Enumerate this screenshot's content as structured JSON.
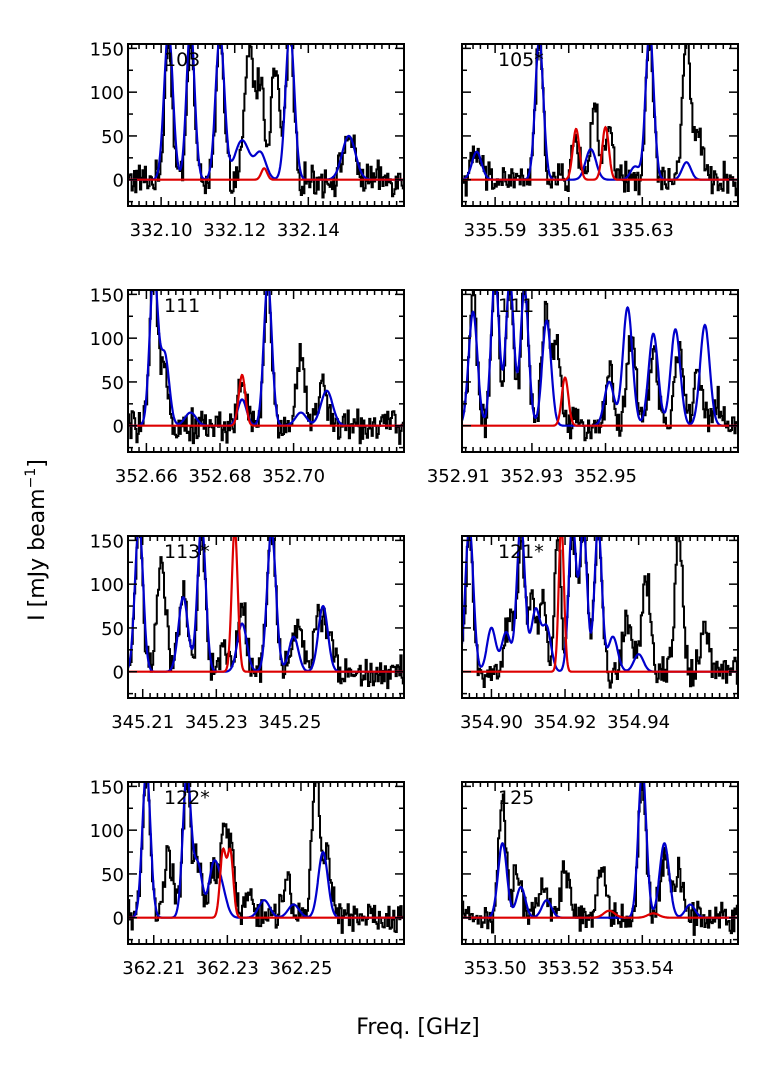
{
  "figure": {
    "xlabel": "Freq. [GHz]",
    "ylabel": "I [mJy beam",
    "ylabel_sup": "−1",
    "ylabel_close": "]"
  },
  "colors": {
    "observed": "#000000",
    "model": "#0000cc",
    "target": "#dd0000"
  },
  "chart_data": [
    {
      "type": "line",
      "label": "103",
      "xlim": [
        332.091,
        332.166
      ],
      "ylim": [
        -30,
        155
      ],
      "xticks": [
        "332.10",
        "332.12",
        "332.14"
      ],
      "yticks": [
        "0",
        "50",
        "100",
        "150"
      ],
      "peaks": {
        "obs": [
          [
            332.102,
            165,
            0.001
          ],
          [
            332.108,
            160,
            0.001
          ],
          [
            332.116,
            165,
            0.001
          ],
          [
            332.124,
            150,
            0.0012
          ],
          [
            332.127,
            110,
            0.001
          ],
          [
            332.131,
            125,
            0.0012
          ],
          [
            332.135,
            170,
            0.001
          ],
          [
            332.151,
            50,
            0.0015
          ]
        ],
        "model": [
          [
            332.102,
            170,
            0.0012
          ],
          [
            332.108,
            175,
            0.0011
          ],
          [
            332.116,
            165,
            0.0012
          ],
          [
            332.122,
            45,
            0.002
          ],
          [
            332.127,
            30,
            0.0015
          ],
          [
            332.135,
            170,
            0.0012
          ],
          [
            332.151,
            50,
            0.0018
          ]
        ],
        "red": [
          [
            332.128,
            13,
            0.0008
          ]
        ]
      }
    },
    {
      "type": "line",
      "label": "105*",
      "xlim": [
        335.581,
        335.656
      ],
      "ylim": [
        -30,
        155
      ],
      "xticks": [
        "335.59",
        "335.61",
        "335.63"
      ],
      "yticks": [],
      "peaks": {
        "obs": [
          [
            335.585,
            30,
            0.0012
          ],
          [
            335.602,
            160,
            0.001
          ],
          [
            335.612,
            45,
            0.001
          ],
          [
            335.617,
            90,
            0.001
          ],
          [
            335.621,
            55,
            0.001
          ],
          [
            335.632,
            160,
            0.001
          ],
          [
            335.642,
            170,
            0.001
          ],
          [
            335.645,
            50,
            0.0012
          ]
        ],
        "model": [
          [
            335.585,
            32,
            0.0013
          ],
          [
            335.602,
            160,
            0.0011
          ],
          [
            335.616,
            35,
            0.0014
          ],
          [
            335.628,
            15,
            0.0012
          ],
          [
            335.632,
            170,
            0.0011
          ],
          [
            335.642,
            20,
            0.0012
          ]
        ],
        "red": [
          [
            335.612,
            58,
            0.0009
          ],
          [
            335.62,
            60,
            0.0009
          ]
        ]
      }
    },
    {
      "type": "line",
      "label": "111",
      "xlim": [
        352.655,
        352.73
      ],
      "ylim": [
        -30,
        155
      ],
      "xticks": [
        "352.66",
        "352.68",
        "352.70"
      ],
      "yticks": [
        "0",
        "50",
        "100",
        "150"
      ],
      "peaks": {
        "obs": [
          [
            352.662,
            170,
            0.001
          ],
          [
            352.665,
            75,
            0.001
          ],
          [
            352.686,
            55,
            0.001
          ],
          [
            352.693,
            160,
            0.001
          ],
          [
            352.702,
            80,
            0.0012
          ],
          [
            352.708,
            45,
            0.0012
          ]
        ],
        "model": [
          [
            352.662,
            175,
            0.0011
          ],
          [
            352.665,
            80,
            0.0012
          ],
          [
            352.672,
            15,
            0.0015
          ],
          [
            352.686,
            30,
            0.0012
          ],
          [
            352.693,
            165,
            0.0011
          ],
          [
            352.702,
            15,
            0.0015
          ],
          [
            352.709,
            40,
            0.0016
          ]
        ],
        "red": [
          [
            352.686,
            58,
            0.0009
          ]
        ]
      }
    },
    {
      "type": "line",
      "label": "111",
      "xlim": [
        352.911,
        352.986
      ],
      "ylim": [
        -30,
        155
      ],
      "xticks": [
        "352.91",
        "352.93",
        "352.95"
      ],
      "yticks": [],
      "peaks": {
        "obs": [
          [
            352.914,
            160,
            0.001
          ],
          [
            352.92,
            170,
            0.001
          ],
          [
            352.924,
            160,
            0.001
          ],
          [
            352.928,
            160,
            0.001
          ],
          [
            352.934,
            130,
            0.0012
          ],
          [
            352.937,
            85,
            0.001
          ],
          [
            352.951,
            60,
            0.001
          ],
          [
            352.957,
            100,
            0.0012
          ],
          [
            352.963,
            80,
            0.0012
          ],
          [
            352.97,
            85,
            0.0012
          ],
          [
            352.975,
            55,
            0.0012
          ],
          [
            352.98,
            30,
            0.0012
          ]
        ],
        "model": [
          [
            352.914,
            130,
            0.0012
          ],
          [
            352.92,
            170,
            0.0011
          ],
          [
            352.924,
            165,
            0.0011
          ],
          [
            352.928,
            155,
            0.0011
          ],
          [
            352.934,
            120,
            0.0012
          ],
          [
            352.951,
            50,
            0.0013
          ],
          [
            352.956,
            135,
            0.0013
          ],
          [
            352.963,
            105,
            0.0013
          ],
          [
            352.969,
            110,
            0.0013
          ],
          [
            352.977,
            115,
            0.0013
          ]
        ],
        "red": [
          [
            352.939,
            55,
            0.0009
          ]
        ]
      }
    },
    {
      "type": "line",
      "label": "113*",
      "xlim": [
        345.206,
        345.281
      ],
      "ylim": [
        -30,
        155
      ],
      "xticks": [
        "345.21",
        "345.23",
        "345.25"
      ],
      "yticks": [
        "0",
        "50",
        "100",
        "150"
      ],
      "peaks": {
        "obs": [
          [
            345.209,
            170,
            0.001
          ],
          [
            345.215,
            120,
            0.0012
          ],
          [
            345.221,
            85,
            0.0012
          ],
          [
            345.226,
            165,
            0.001
          ],
          [
            345.232,
            30,
            0.001
          ],
          [
            345.237,
            75,
            0.0012
          ],
          [
            345.245,
            160,
            0.0012
          ],
          [
            345.252,
            60,
            0.0012
          ],
          [
            345.258,
            70,
            0.0012
          ],
          [
            345.261,
            40,
            0.0012
          ]
        ],
        "model": [
          [
            345.209,
            170,
            0.0011
          ],
          [
            345.221,
            85,
            0.0013
          ],
          [
            345.226,
            170,
            0.0011
          ],
          [
            345.237,
            55,
            0.0013
          ],
          [
            345.245,
            160,
            0.0012
          ],
          [
            345.251,
            40,
            0.0013
          ],
          [
            345.259,
            75,
            0.0013
          ]
        ],
        "red": [
          [
            345.235,
            165,
            0.0008
          ]
        ]
      }
    },
    {
      "type": "line",
      "label": "121*",
      "xlim": [
        354.892,
        354.967
      ],
      "ylim": [
        -30,
        155
      ],
      "xticks": [
        "354.90",
        "354.92",
        "354.94"
      ],
      "yticks": [],
      "peaks": {
        "obs": [
          [
            354.894,
            150,
            0.001
          ],
          [
            354.905,
            60,
            0.0012
          ],
          [
            354.908,
            140,
            0.001
          ],
          [
            354.911,
            90,
            0.001
          ],
          [
            354.914,
            80,
            0.001
          ],
          [
            354.918,
            165,
            0.0008
          ],
          [
            354.922,
            165,
            0.001
          ],
          [
            354.925,
            160,
            0.001
          ],
          [
            354.929,
            160,
            0.001
          ],
          [
            354.937,
            60,
            0.0012
          ],
          [
            354.942,
            110,
            0.0012
          ],
          [
            354.951,
            165,
            0.001
          ],
          [
            354.958,
            50,
            0.0012
          ]
        ],
        "model": [
          [
            354.894,
            165,
            0.0011
          ],
          [
            354.9,
            50,
            0.0012
          ],
          [
            354.904,
            45,
            0.0012
          ],
          [
            354.908,
            170,
            0.0011
          ],
          [
            354.912,
            70,
            0.0012
          ],
          [
            354.915,
            50,
            0.0012
          ],
          [
            354.922,
            170,
            0.001
          ],
          [
            354.925,
            165,
            0.001
          ],
          [
            354.929,
            165,
            0.001
          ],
          [
            354.933,
            40,
            0.0013
          ],
          [
            354.94,
            20,
            0.0013
          ]
        ],
        "red": [
          [
            354.919,
            170,
            0.0007
          ]
        ]
      }
    },
    {
      "type": "line",
      "label": "122*",
      "xlim": [
        362.203,
        362.278
      ],
      "ylim": [
        -30,
        155
      ],
      "xticks": [
        "362.21",
        "362.23",
        "362.25"
      ],
      "yticks": [
        "0",
        "50",
        "100",
        "150"
      ],
      "peaks": {
        "obs": [
          [
            362.208,
            170,
            0.001
          ],
          [
            362.214,
            70,
            0.0012
          ],
          [
            362.219,
            165,
            0.001
          ],
          [
            362.222,
            65,
            0.001
          ],
          [
            362.226,
            50,
            0.0012
          ],
          [
            362.229,
            80,
            0.001
          ],
          [
            362.231,
            75,
            0.001
          ],
          [
            362.236,
            30,
            0.0012
          ],
          [
            362.246,
            40,
            0.0012
          ],
          [
            362.254,
            170,
            0.001
          ],
          [
            362.257,
            70,
            0.0012
          ]
        ],
        "model": [
          [
            362.208,
            170,
            0.0011
          ],
          [
            362.219,
            165,
            0.0011
          ],
          [
            362.222,
            60,
            0.0012
          ],
          [
            362.226,
            45,
            0.0012
          ],
          [
            362.228,
            40,
            0.0015
          ],
          [
            362.24,
            20,
            0.0015
          ],
          [
            362.248,
            15,
            0.0015
          ],
          [
            362.256,
            75,
            0.0013
          ]
        ],
        "red": [
          [
            362.2288,
            75,
            0.0008
          ],
          [
            362.2308,
            75,
            0.0008
          ]
        ]
      }
    },
    {
      "type": "line",
      "label": "125",
      "xlim": [
        353.491,
        353.566
      ],
      "ylim": [
        -30,
        155
      ],
      "xticks": [
        "353.50",
        "353.52",
        "353.54"
      ],
      "yticks": [],
      "peaks": {
        "obs": [
          [
            353.502,
            135,
            0.001
          ],
          [
            353.506,
            55,
            0.001
          ],
          [
            353.513,
            40,
            0.0012
          ],
          [
            353.519,
            60,
            0.001
          ],
          [
            353.529,
            55,
            0.0012
          ],
          [
            353.54,
            165,
            0.001
          ],
          [
            353.546,
            70,
            0.0012
          ],
          [
            353.55,
            50,
            0.0012
          ]
        ],
        "model": [
          [
            353.502,
            85,
            0.0012
          ],
          [
            353.507,
            35,
            0.0012
          ],
          [
            353.514,
            20,
            0.0013
          ],
          [
            353.54,
            170,
            0.0011
          ],
          [
            353.546,
            85,
            0.0013
          ],
          [
            353.553,
            15,
            0.0013
          ]
        ],
        "red": [
          [
            353.531,
            8,
            0.0015
          ],
          [
            353.543,
            5,
            0.0015
          ]
        ]
      }
    }
  ]
}
